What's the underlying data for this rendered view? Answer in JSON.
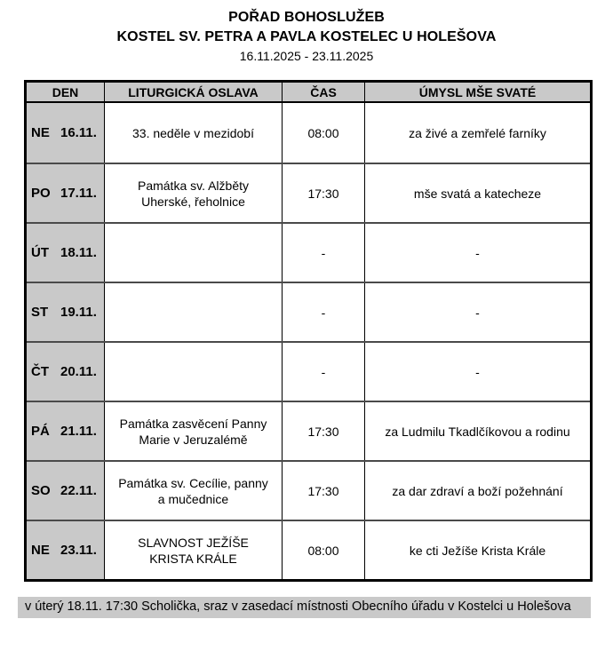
{
  "header": {
    "title": "POŘAD BOHOSLUŽEB",
    "subtitle": "KOSTEL SV. PETRA A PAVLA KOSTELEC U HOLEŠOVA",
    "date_range": "16.11.2025 - 23.11.2025"
  },
  "table": {
    "columns": [
      "DEN",
      "LITURGICKÁ OSLAVA",
      "ČAS",
      "ÚMYSL MŠE SVATÉ"
    ],
    "rows": [
      {
        "day": "NE",
        "date": "16.11.",
        "celebration": "33. neděle v mezidobí",
        "time": "08:00",
        "intention": "za živé a zemřelé farníky"
      },
      {
        "day": "PO",
        "date": "17.11.",
        "celebration": "Památka sv. Alžběty\nUherské, řeholnice",
        "time": "17:30",
        "intention": "mše svatá a katecheze"
      },
      {
        "day": "ÚT",
        "date": "18.11.",
        "celebration": "",
        "time": "-",
        "intention": "-"
      },
      {
        "day": "ST",
        "date": "19.11.",
        "celebration": "",
        "time": "-",
        "intention": "-"
      },
      {
        "day": "ČT",
        "date": "20.11.",
        "celebration": "",
        "time": "-",
        "intention": "-"
      },
      {
        "day": "PÁ",
        "date": "21.11.",
        "celebration": "Památka zasvěcení Panny\nMarie v Jeruzalémě",
        "time": "17:30",
        "intention": "za Ludmilu Tkadlčíkovou a rodinu"
      },
      {
        "day": "SO",
        "date": "22.11.",
        "celebration": "Památka sv. Cecílie, panny\na mučednice",
        "time": "17:30",
        "intention": "za dar zdraví a boží požehnání"
      },
      {
        "day": "NE",
        "date": "23.11.",
        "celebration": "SLAVNOST JEŽÍŠE\nKRISTA KRÁLE",
        "time": "08:00",
        "intention": "ke cti Ježíše Krista Krále"
      }
    ]
  },
  "footer": {
    "note": "v úterý 18.11. 17:30 Scholička, sraz v zasedací místnosti Obecního úřadu v Kostelci u Holešova"
  },
  "colors": {
    "cell_gray": "#c9c9c9",
    "border_black": "#000000",
    "row_divider": "#4a4a4a"
  }
}
